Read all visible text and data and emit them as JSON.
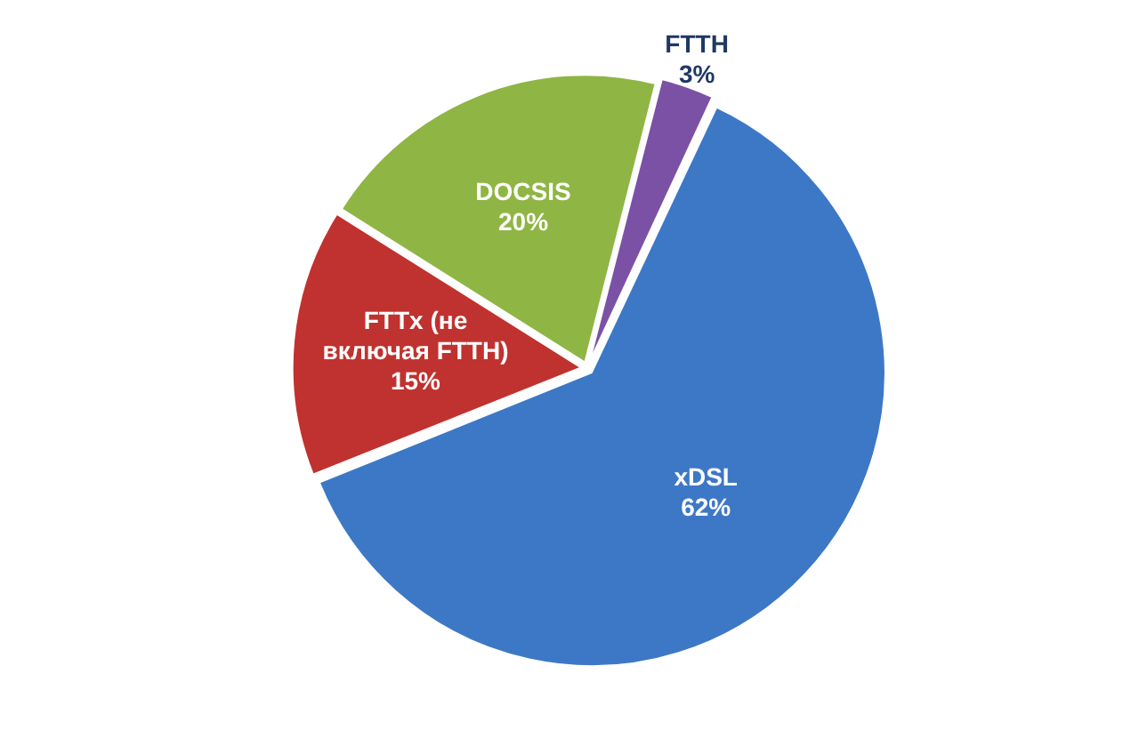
{
  "chart_data": {
    "type": "pie",
    "categories": [
      "xDSL",
      "FTTx (не включая FTTH)",
      "DOCSIS",
      "FTTH"
    ],
    "values": [
      62,
      15,
      20,
      3
    ],
    "value_labels": [
      "62%",
      "15%",
      "20%",
      "3%"
    ],
    "colors": [
      "#3d78c6",
      "#c0322f",
      "#8fb544",
      "#7b51a6"
    ],
    "legend": false
  }
}
